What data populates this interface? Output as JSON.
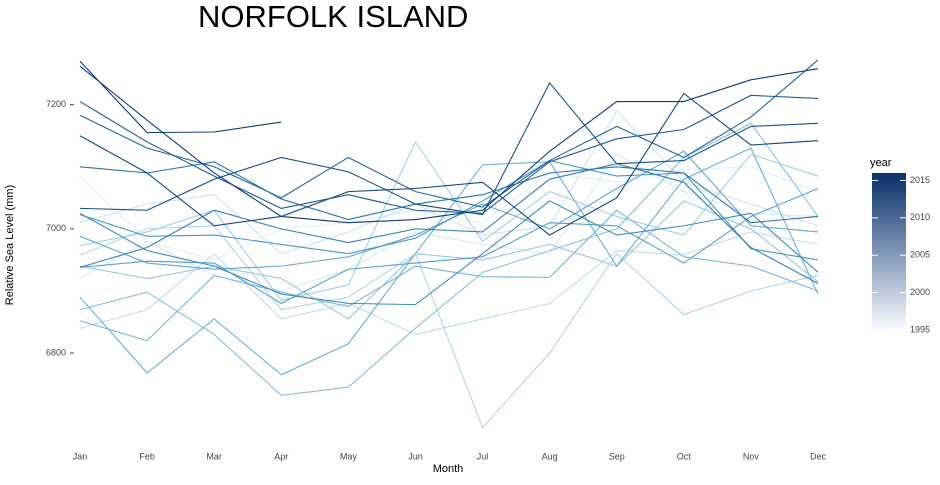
{
  "chart_data": {
    "type": "line",
    "title": "NORFOLK ISLAND",
    "x_label": "Month",
    "y_label": "Relative Sea Level (mm)",
    "categories": [
      "Jan",
      "Feb",
      "Mar",
      "Apr",
      "May",
      "Jun",
      "Jul",
      "Aug",
      "Sep",
      "Oct",
      "Nov",
      "Dec"
    ],
    "ylim": [
      6660,
      7280
    ],
    "yticks": [
      6800,
      7000,
      7200
    ],
    "grid": false,
    "colorbar": {
      "title": "year",
      "lim": [
        1995,
        2016
      ],
      "ticks": [
        1995,
        2000,
        2005,
        2010,
        2015
      ],
      "colors": [
        "#f7fbff",
        "#08306b"
      ]
    },
    "series": [
      {
        "color": "#e2eef8",
        "values": [
          7085,
          6980,
          6950,
          7000,
          7010,
          7030,
          7010,
          7090,
          7075,
          7095,
          7100,
          7060
        ]
      },
      {
        "color": "#d8e8f5",
        "values": [
          6920,
          6980,
          6925,
          6900,
          6935,
          6995,
          6975,
          6960,
          7120,
          7060,
          7025,
          7020
        ]
      },
      {
        "color": "#cce2f2",
        "values": [
          7010,
          7040,
          7055,
          6960,
          6995,
          7040,
          6990,
          7005,
          7190,
          7075,
          7040,
          7005
        ]
      },
      {
        "color": "#c0dbee",
        "values": [
          6840,
          6870,
          6960,
          6855,
          6880,
          6830,
          6855,
          6880,
          6965,
          6958,
          6995,
          6975
        ]
      },
      {
        "color": "#b3d4ea",
        "values": [
          6958,
          7000,
          7005,
          6870,
          6890,
          6960,
          6680,
          6800,
          6960,
          6862,
          6900,
          6925
        ]
      },
      {
        "color": "#a1cee3",
        "values": [
          6973,
          6995,
          7030,
          6885,
          6910,
          7140,
          6980,
          7060,
          7020,
          6990,
          7120,
          7085
        ]
      },
      {
        "color": "#94c7e0",
        "values": [
          6940,
          6920,
          6940,
          6920,
          6855,
          6960,
          6950,
          6975,
          6940,
          7045,
          7000,
          6915
        ]
      },
      {
        "color": "#86bfdc",
        "values": [
          6870,
          6898,
          6830,
          6732,
          6745,
          6840,
          6930,
          6965,
          7000,
          7115,
          7170,
          7020
        ]
      },
      {
        "color": "#79b8da",
        "values": [
          6852,
          6820,
          6925,
          6898,
          6875,
          6940,
          6923,
          6922,
          7030,
          6955,
          6940,
          6900
        ]
      },
      {
        "color": "#6cb0d6",
        "values": [
          6890,
          6768,
          6855,
          6765,
          6815,
          6960,
          7103,
          7108,
          6940,
          7080,
          7130,
          6895
        ]
      },
      {
        "color": "#60a8d2",
        "values": [
          6988,
          6945,
          6935,
          6940,
          6955,
          6990,
          7040,
          7000,
          7065,
          7125,
          7005,
          6995
        ]
      },
      {
        "color": "#54a0cd",
        "values": [
          6938,
          6948,
          6945,
          6880,
          6935,
          6945,
          6955,
          7010,
          7005,
          6945,
          7020,
          7065
        ]
      },
      {
        "color": "#4896c8",
        "values": [
          7023,
          6988,
          6990,
          6975,
          6960,
          6985,
          7045,
          7110,
          7085,
          7090,
          6968,
          6950
        ]
      },
      {
        "color": "#3d8bc2",
        "values": [
          7025,
          6965,
          6940,
          6895,
          6880,
          6878,
          6960,
          7045,
          6990,
          7005,
          7025,
          6930
        ]
      },
      {
        "color": "#3480bb",
        "values": [
          6938,
          6970,
          7030,
          7000,
          6978,
          7000,
          6995,
          7080,
          7105,
          7075,
          6970,
          6912
        ]
      },
      {
        "color": "#2c72b0",
        "values": [
          7100,
          7090,
          7108,
          7048,
          7015,
          7040,
          7055,
          7090,
          7100,
          7090,
          7010,
          7020
        ]
      },
      {
        "color": "#2265a3",
        "values": [
          7183,
          7130,
          7100,
          7050,
          7115,
          7060,
          7035,
          7110,
          7165,
          7115,
          7180,
          7272
        ]
      },
      {
        "color": "#1c5a99",
        "values": [
          7205,
          7140,
          7085,
          7033,
          7055,
          7030,
          7025,
          7108,
          7145,
          7160,
          7215,
          7210
        ]
      },
      {
        "color": "#155190",
        "values": [
          7033,
          7030,
          7080,
          7115,
          7092,
          7040,
          7023,
          7235,
          7105,
          7110,
          7165,
          7170
        ]
      },
      {
        "color": "#114584",
        "values": [
          7150,
          7090,
          7005,
          7020,
          7060,
          7065,
          7075,
          6990,
          7050,
          7218,
          7135,
          7142
        ]
      },
      {
        "color": "#0c3c7d",
        "values": [
          7262,
          7175,
          7090,
          7020,
          7010,
          7015,
          7030,
          7125,
          7205,
          7205,
          7240,
          7258
        ]
      },
      {
        "color": "#0b3a7a",
        "values": [
          7270,
          7155,
          7156,
          7172,
          null,
          null,
          null,
          null,
          null,
          null,
          null,
          null
        ]
      }
    ]
  }
}
